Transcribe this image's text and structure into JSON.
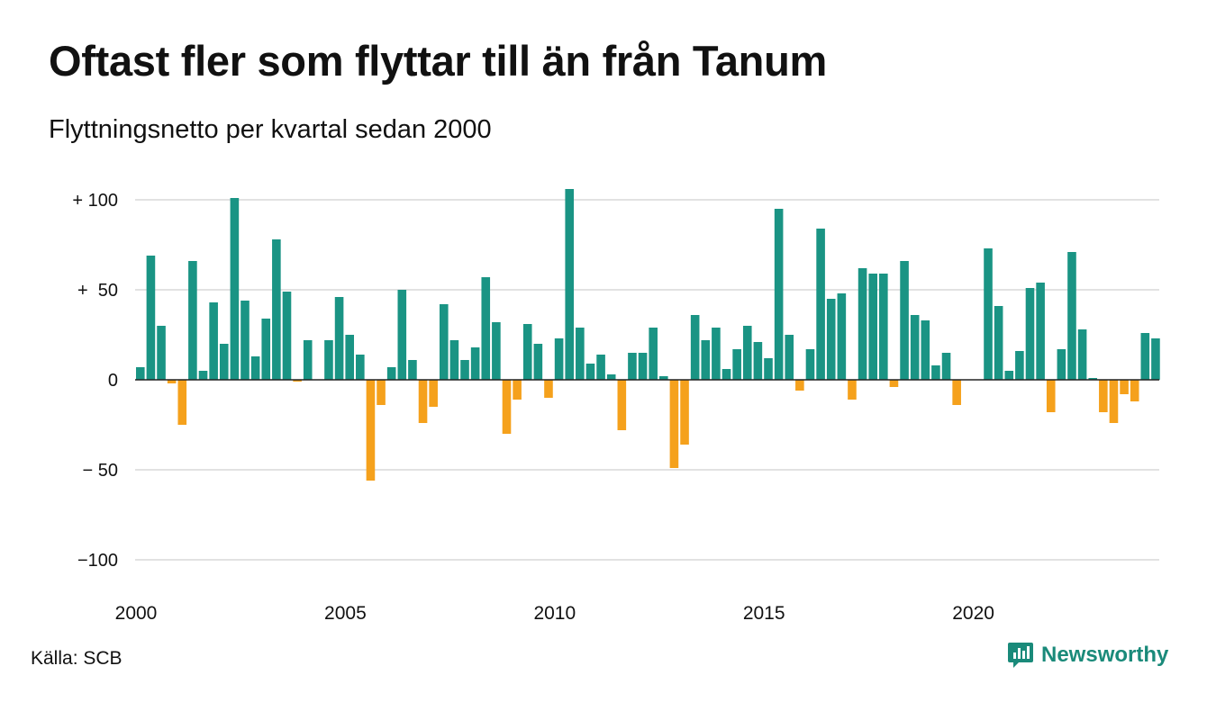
{
  "header": {
    "title": "Oftast fler som flyttar till än från Tanum",
    "subtitle": "Flyttningsnetto per kvartal sedan 2000"
  },
  "footer": {
    "source": "Källa: SCB",
    "brand": "Newsworthy",
    "brand_icon": "newsworthy-logo-icon"
  },
  "colors": {
    "positive": "#1a9484",
    "negative": "#f5a11c",
    "grid": "#d9d9d9",
    "brand": "#1a8a7a"
  },
  "chart_data": {
    "type": "bar",
    "title": "Oftast fler som flyttar till än från Tanum",
    "subtitle": "Flyttningsnetto per kvartal sedan 2000",
    "xlabel": "",
    "ylabel": "",
    "ylim": [
      -100,
      100
    ],
    "y_ticks": [
      {
        "value": 100,
        "label": "+ 100"
      },
      {
        "value": 50,
        "label": "+  50"
      },
      {
        "value": 0,
        "label": "0"
      },
      {
        "value": -50,
        "label": "− 50"
      },
      {
        "value": -100,
        "label": "−100"
      }
    ],
    "x_ticks": [
      "2000",
      "2005",
      "2010",
      "2015",
      "2020"
    ],
    "grid": true,
    "legend": "none",
    "start_quarter": "2000 Q1",
    "frequency": "quarterly",
    "values": [
      7,
      69,
      30,
      -2,
      -25,
      66,
      5,
      43,
      20,
      101,
      44,
      13,
      34,
      78,
      49,
      -1,
      22,
      0,
      22,
      46,
      25,
      14,
      -56,
      -14,
      7,
      50,
      11,
      -24,
      -15,
      42,
      22,
      11,
      18,
      57,
      32,
      -30,
      -11,
      31,
      20,
      -10,
      23,
      106,
      29,
      9,
      14,
      3,
      -28,
      15,
      15,
      29,
      2,
      -49,
      -36,
      36,
      22,
      29,
      6,
      17,
      30,
      21,
      12,
      95,
      25,
      -6,
      17,
      84,
      45,
      48,
      -11,
      62,
      59,
      59,
      -4,
      66,
      36,
      33,
      8,
      15,
      -14,
      0,
      0,
      73,
      41,
      5,
      16,
      51,
      54,
      -18,
      17,
      71,
      28,
      1,
      -18,
      -24,
      -8,
      -12,
      26,
      23
    ]
  }
}
